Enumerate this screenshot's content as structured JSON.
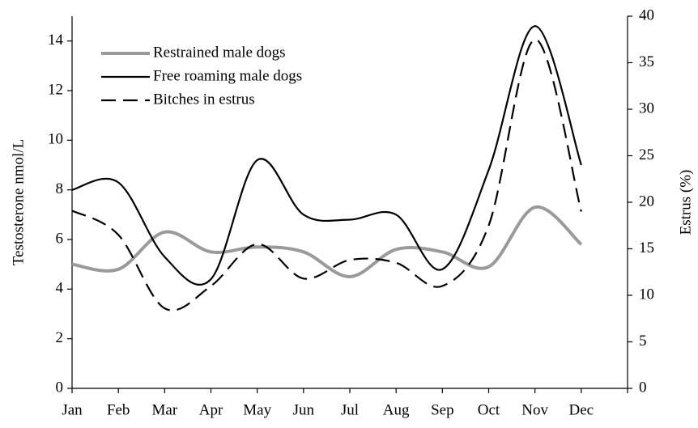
{
  "chart_data": {
    "type": "line",
    "categories": [
      "Jan",
      "Feb",
      "Mar",
      "Apr",
      "May",
      "Jun",
      "Jul",
      "Aug",
      "Sep",
      "Oct",
      "Nov",
      "Dec"
    ],
    "series": [
      {
        "name": "Restrained male dogs",
        "color": "#9a9a9a",
        "values": [
          5.0,
          4.8,
          6.3,
          5.5,
          5.7,
          5.5,
          4.5,
          5.6,
          5.5,
          4.9,
          7.3,
          5.8
        ]
      },
      {
        "name": "Free roaming male dogs",
        "color": "#000000",
        "values": [
          8.0,
          8.3,
          5.3,
          4.4,
          9.2,
          7.0,
          6.8,
          7.0,
          4.8,
          8.8,
          14.6,
          9.0
        ]
      },
      {
        "name": "Bitches  in estrus",
        "color": "#000000",
        "axis": "y2",
        "values": [
          19.1,
          16.5,
          8.6,
          11.0,
          15.5,
          11.8,
          13.8,
          13.5,
          11.0,
          17.5,
          37.5,
          19.0
        ]
      }
    ],
    "ylabel": "Testosterone nmol/L",
    "y2label": "Estrus (%)",
    "ylim": [
      0,
      15
    ],
    "yticks": [
      0,
      2,
      4,
      6,
      8,
      10,
      12,
      14
    ],
    "y2lim": [
      0,
      40
    ],
    "y2ticks": [
      0,
      5,
      10,
      15,
      20,
      25,
      30,
      35,
      40
    ]
  }
}
